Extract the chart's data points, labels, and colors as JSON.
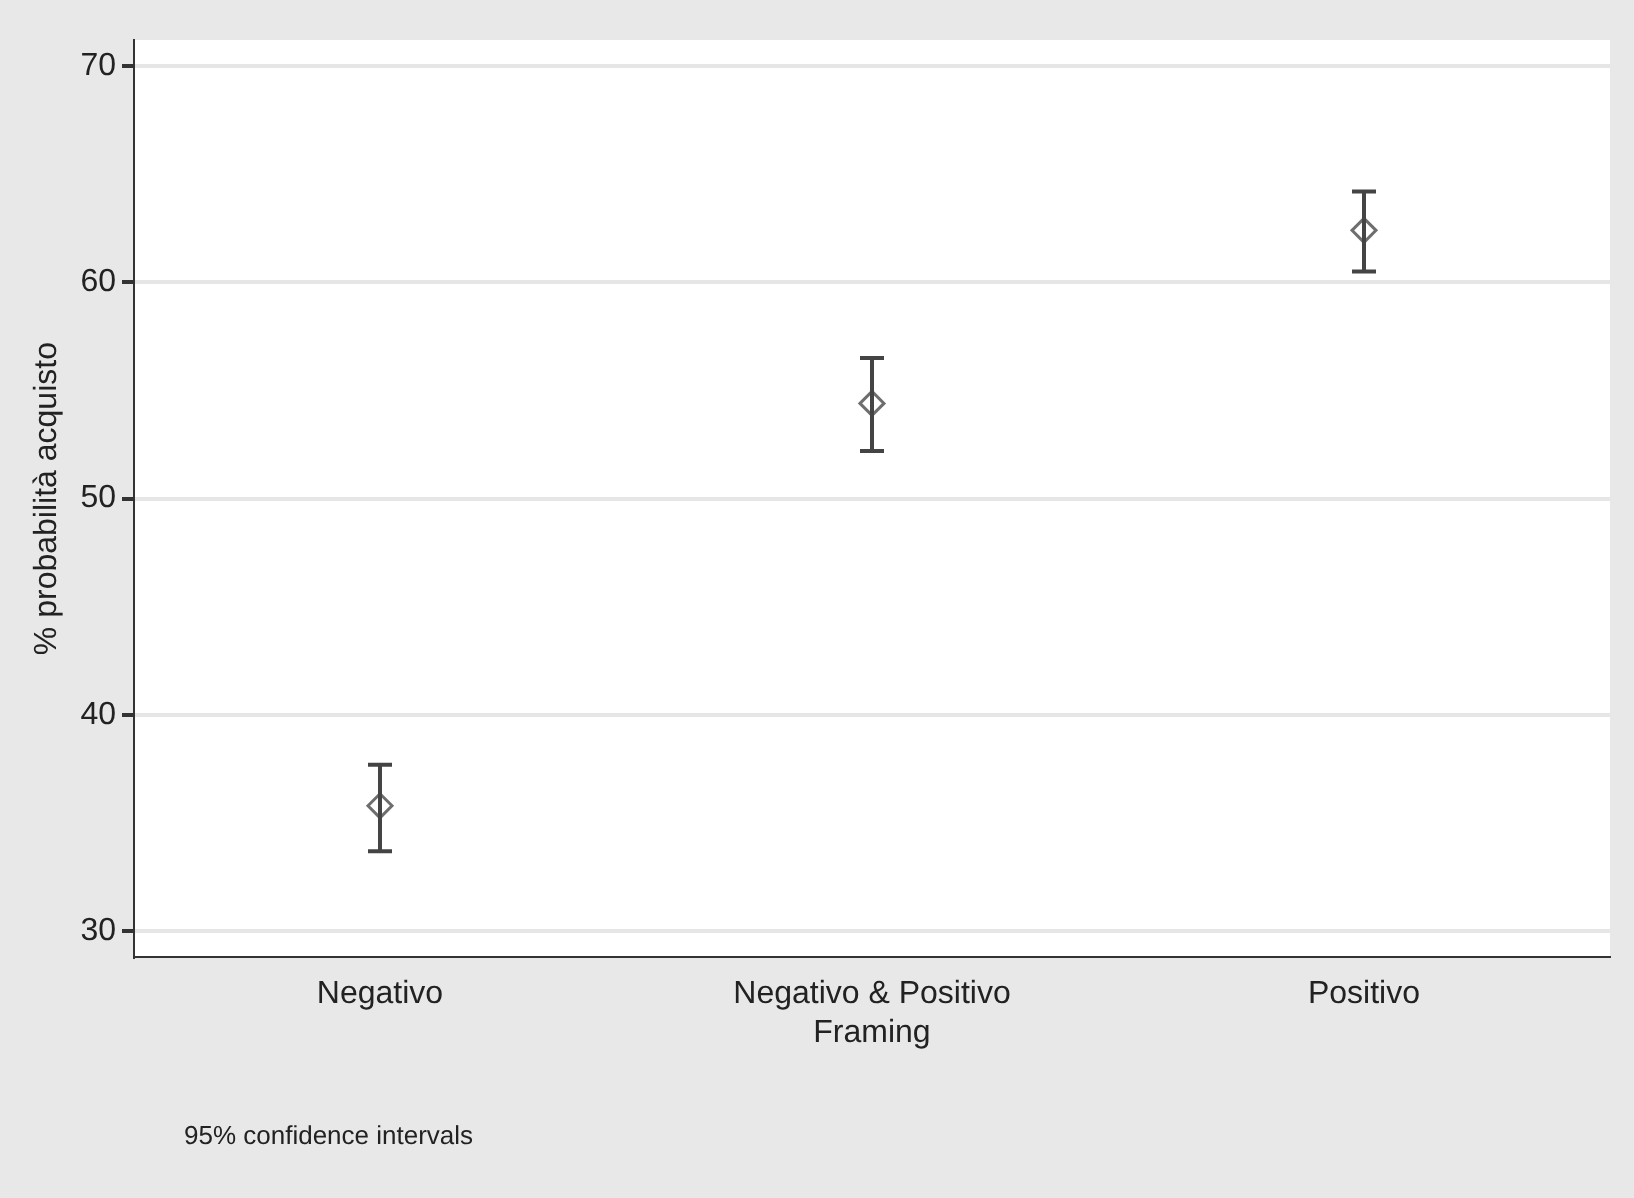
{
  "chart_data": {
    "type": "scatter",
    "ylabel": "% probabilità acquisto",
    "categories": [
      "Negativo",
      "Negativo & Positivo Framing",
      "Positivo"
    ],
    "values": [
      35.8,
      54.4,
      62.4
    ],
    "errors": [
      [
        33.7,
        37.7
      ],
      [
        52.2,
        56.5
      ],
      [
        60.5,
        64.2
      ]
    ],
    "color": "#6e6e6e",
    "marker": "diamond",
    "ylim": [
      28.8,
      71.2
    ],
    "yticks": [
      30,
      40,
      50,
      60,
      70
    ],
    "grid": "y",
    "annotations": [
      "95% confidence intervals"
    ]
  }
}
